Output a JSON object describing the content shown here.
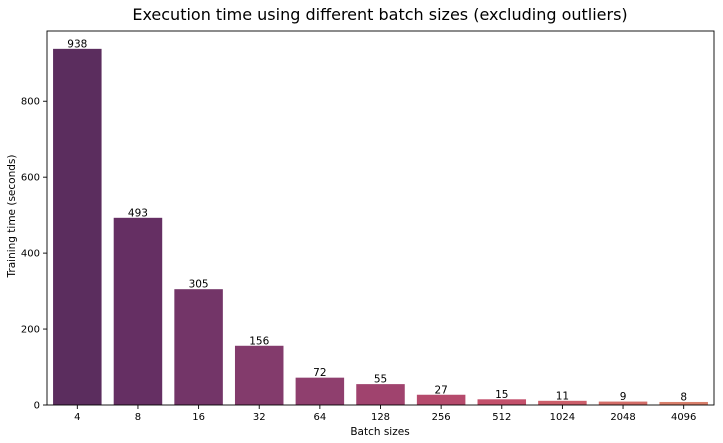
{
  "chart_data": {
    "type": "bar",
    "title": "Execution time using different batch sizes (excluding outliers)",
    "xlabel": "Batch sizes",
    "ylabel": "Training time (seconds)",
    "categories": [
      "4",
      "8",
      "16",
      "32",
      "64",
      "128",
      "256",
      "512",
      "1024",
      "2048",
      "4096"
    ],
    "values": [
      938,
      493,
      305,
      156,
      72,
      55,
      27,
      15,
      11,
      9,
      8
    ],
    "data_labels": [
      "938",
      "493",
      "305",
      "156",
      "72",
      "55",
      "27",
      "15",
      "11",
      "9",
      "8"
    ],
    "ylim": [
      0,
      985
    ],
    "yticks": [
      0,
      200,
      400,
      600,
      800
    ],
    "colors": [
      "#5b2d5e",
      "#652f63",
      "#733568",
      "#833b6c",
      "#8f3f6e",
      "#a0436e",
      "#b54a6c",
      "#c3506b",
      "#cc5e6a",
      "#d46d68",
      "#d97f6b"
    ],
    "grid": false,
    "legend": "none"
  }
}
